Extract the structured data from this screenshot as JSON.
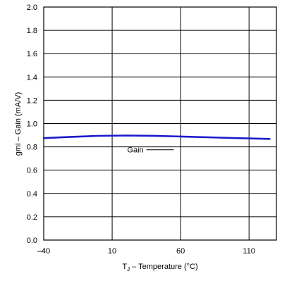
{
  "chart_data": {
    "type": "line",
    "title": "",
    "xlabel_main": "T",
    "xlabel_sub": "J",
    "xlabel_rest": " – Temperature (°C)",
    "ylabel": "gmi – Gain (mA/V)",
    "xlim": [
      -40,
      130
    ],
    "ylim": [
      0.0,
      2.0
    ],
    "x_ticks": [
      -40,
      10,
      60,
      110
    ],
    "x_tick_labels": [
      "–40",
      "10",
      "60",
      "110"
    ],
    "y_ticks": [
      0.0,
      0.2,
      0.4,
      0.6,
      0.8,
      1.0,
      1.2,
      1.4,
      1.6,
      1.8,
      2.0
    ],
    "y_tick_labels": [
      "0.0",
      "0.2",
      "0.4",
      "0.6",
      "0.8",
      "1.0",
      "1.2",
      "1.4",
      "1.6",
      "1.8",
      "2.0"
    ],
    "grid": true,
    "series": [
      {
        "color": "#1a1acc",
        "x": [
          -40,
          -20,
          0,
          20,
          40,
          60,
          80,
          100,
          125
        ],
        "y": [
          0.875,
          0.886,
          0.894,
          0.897,
          0.895,
          0.889,
          0.882,
          0.875,
          0.868
        ]
      }
    ],
    "annotations": [
      {
        "text": "Gain",
        "x": 27,
        "y": 0.775,
        "leader_x": [
          35,
          55
        ]
      }
    ]
  }
}
